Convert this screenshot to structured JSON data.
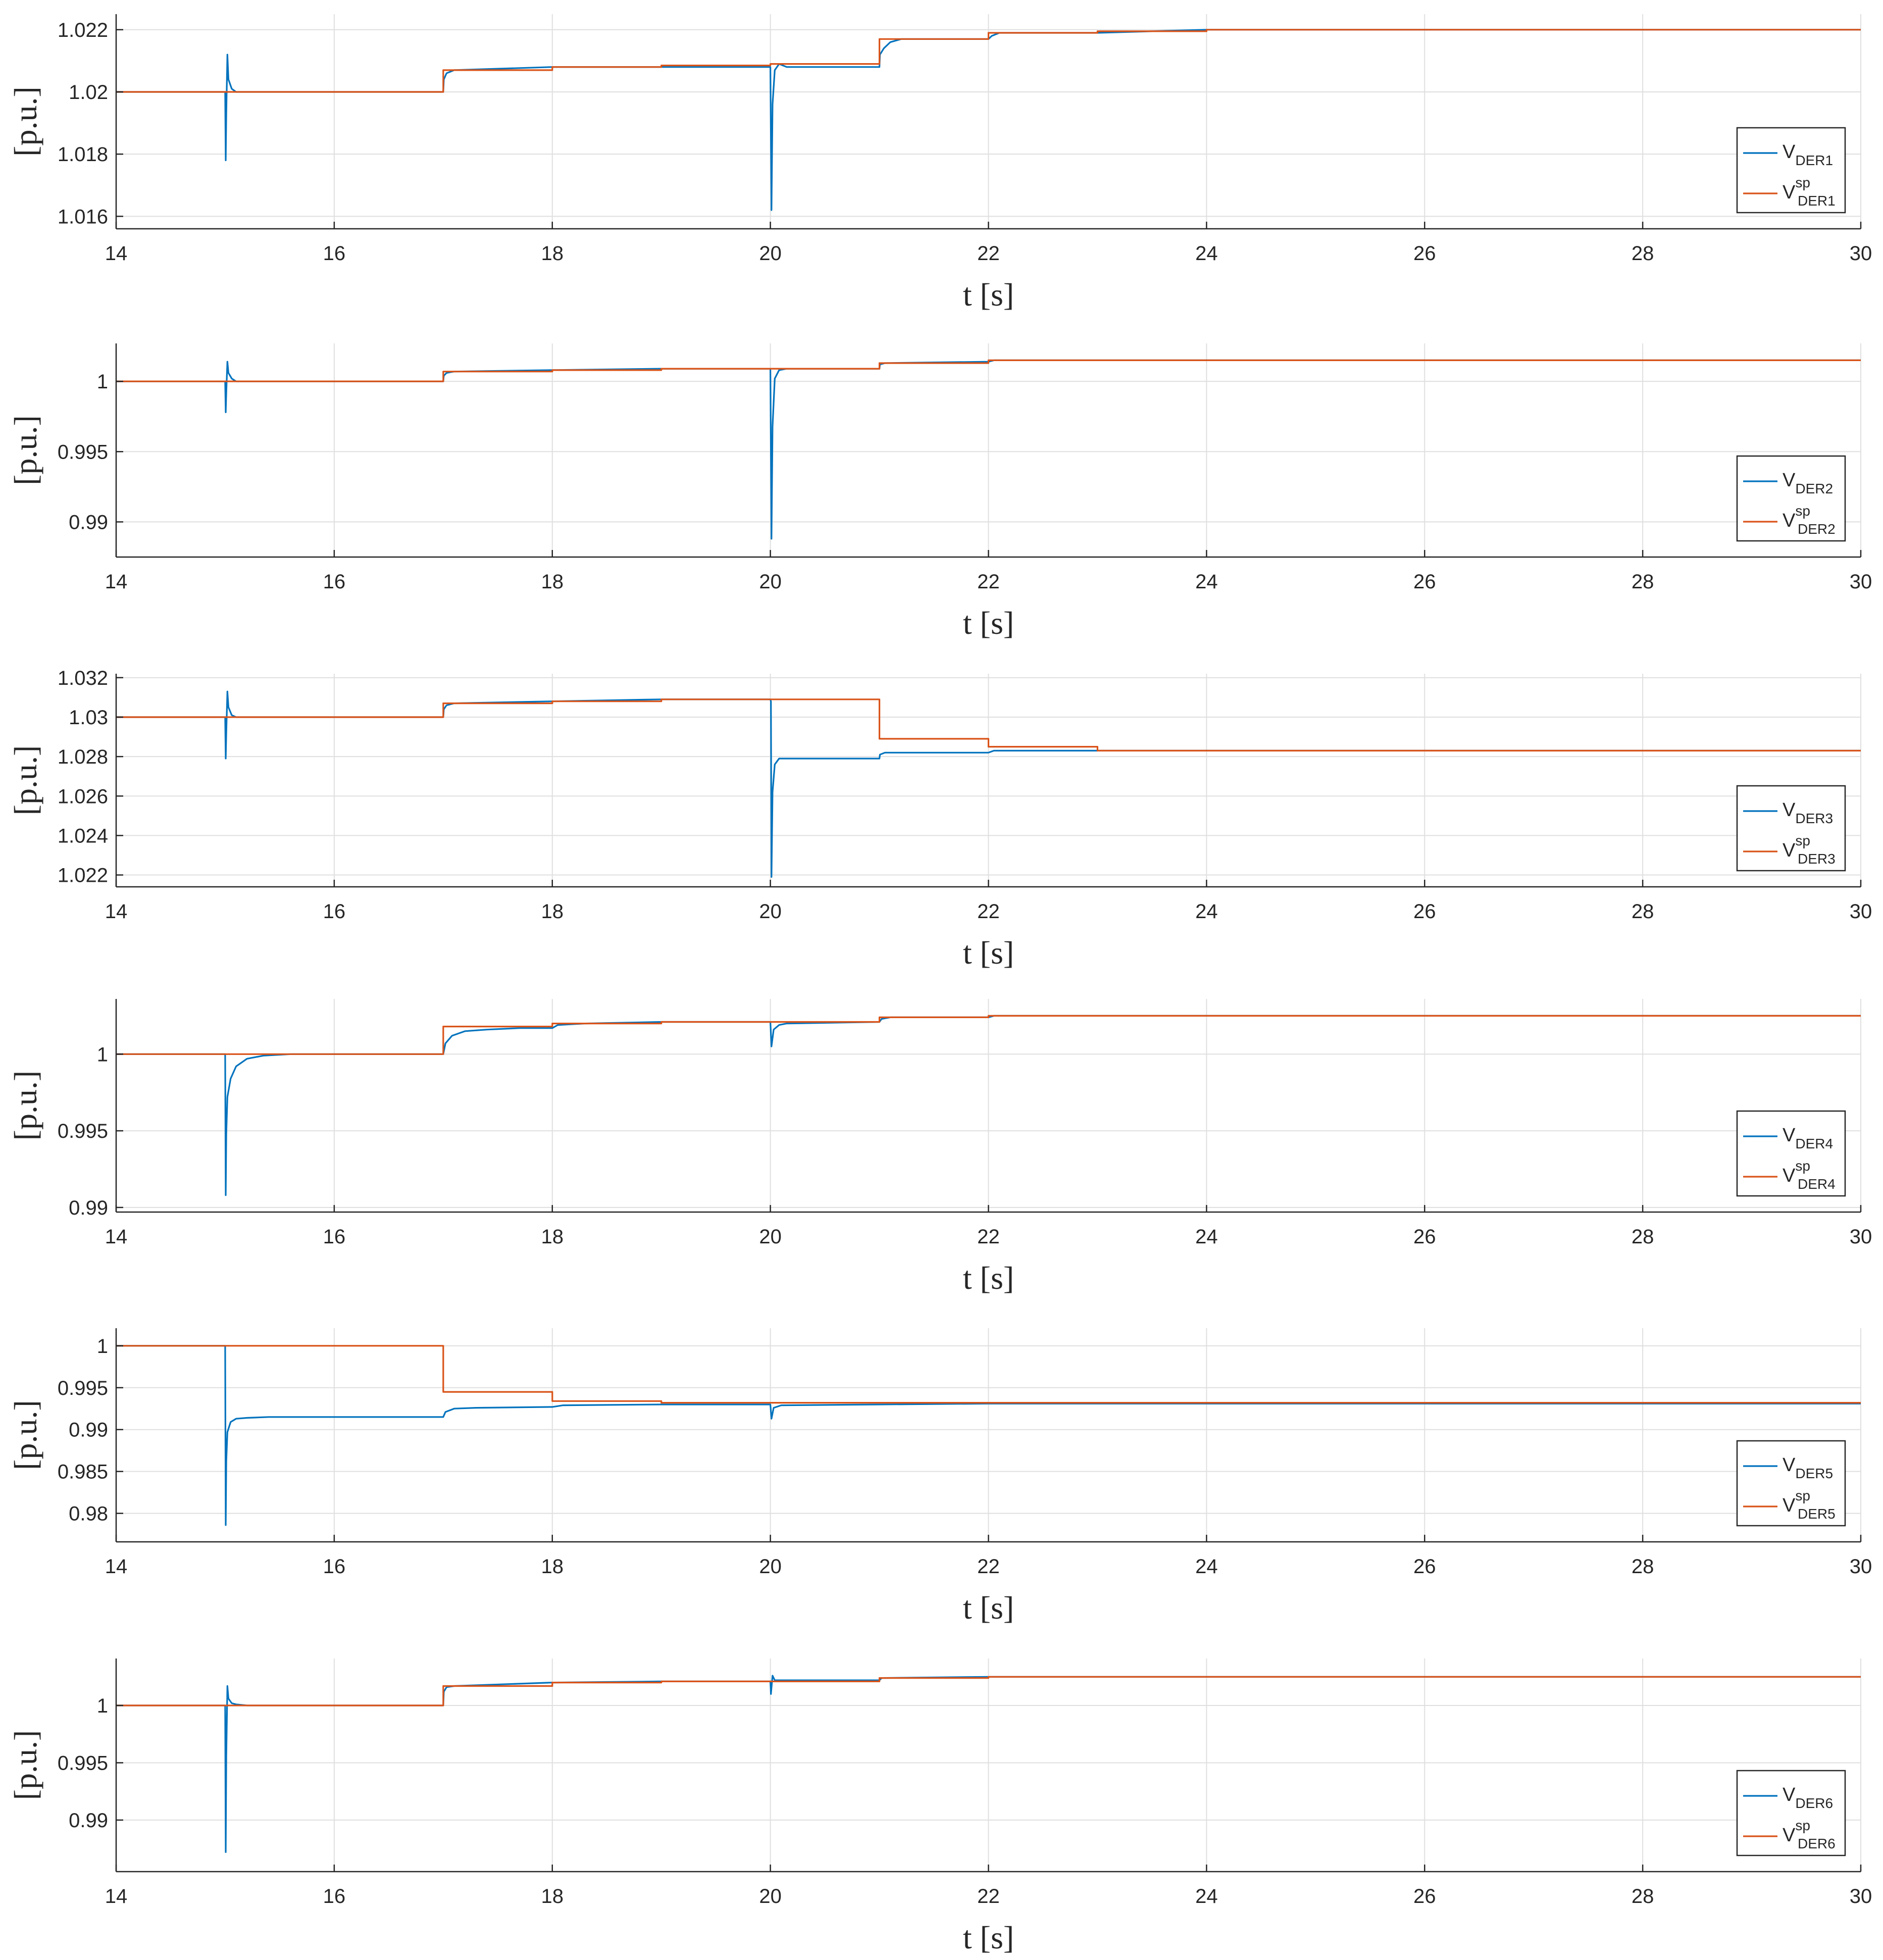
{
  "figure": {
    "background": "#ffffff",
    "grid_color": "#dfdfdf",
    "axis_color": "#262626",
    "series_colors": {
      "measured": "#0072BD",
      "setpoint": "#D95319"
    }
  },
  "chart_data": [
    {
      "type": "line",
      "xlabel": "t [s]",
      "ylabel": "[p.u.]",
      "xlim": [
        14,
        30
      ],
      "ylim": [
        1.0156,
        1.0225
      ],
      "xticks": [
        14,
        16,
        18,
        20,
        22,
        24,
        26,
        28,
        30
      ],
      "xtick_labels": [
        "14",
        "16",
        "18",
        "20",
        "22",
        "24",
        "26",
        "28",
        "30"
      ],
      "yticks": [
        1.016,
        1.018,
        1.02,
        1.022
      ],
      "ytick_labels": [
        "1.016",
        "1.018",
        "1.02",
        "1.022"
      ],
      "grid": true,
      "legend_position": "bottom-right",
      "series": [
        {
          "name_base": "V",
          "name_sub": "DER1",
          "name_sup": "",
          "color": "#0072BD",
          "x": [
            14,
            15.0,
            15.005,
            15.01,
            15.02,
            15.03,
            15.06,
            15.1,
            15.2,
            15.3,
            17.0,
            17.005,
            17.03,
            17.1,
            18.0,
            19.0,
            20.0,
            20.01,
            20.02,
            20.04,
            20.08,
            20.15,
            21.0,
            21.005,
            21.04,
            21.1,
            21.2,
            22.0,
            22.03,
            22.1,
            23.0,
            24.0,
            30
          ],
          "y": [
            1.02,
            1.02,
            1.0178,
            1.0193,
            1.0212,
            1.0204,
            1.0201,
            1.02,
            1.02,
            1.02,
            1.02,
            1.0204,
            1.0206,
            1.0207,
            1.0208,
            1.0208,
            1.0208,
            1.0162,
            1.0196,
            1.0207,
            1.0209,
            1.0208,
            1.0208,
            1.0212,
            1.0214,
            1.0216,
            1.0217,
            1.0217,
            1.0218,
            1.0219,
            1.0219,
            1.022,
            1.022
          ]
        },
        {
          "name_base": "V",
          "name_sub": "DER1",
          "name_sup": "sp",
          "color": "#D95319",
          "x": [
            14,
            17,
            17,
            18,
            18,
            19,
            19,
            20,
            20,
            21,
            21,
            22,
            22,
            23,
            23,
            24,
            24,
            30
          ],
          "y": [
            1.02,
            1.02,
            1.0207,
            1.0207,
            1.0208,
            1.0208,
            1.02085,
            1.02085,
            1.0209,
            1.0209,
            1.0217,
            1.0217,
            1.0219,
            1.0219,
            1.02195,
            1.02195,
            1.022,
            1.022
          ]
        }
      ]
    },
    {
      "type": "line",
      "xlabel": "t [s]",
      "ylabel": "[p.u.]",
      "xlim": [
        14,
        30
      ],
      "ylim": [
        0.9875,
        1.0027
      ],
      "xticks": [
        14,
        16,
        18,
        20,
        22,
        24,
        26,
        28,
        30
      ],
      "xtick_labels": [
        "14",
        "16",
        "18",
        "20",
        "22",
        "24",
        "26",
        "28",
        "30"
      ],
      "yticks": [
        0.99,
        0.995,
        1.0
      ],
      "ytick_labels": [
        "0.99",
        "0.995",
        "1"
      ],
      "grid": true,
      "legend_position": "bottom-right",
      "series": [
        {
          "name_base": "V",
          "name_sub": "DER2",
          "name_sup": "",
          "color": "#0072BD",
          "x": [
            14,
            15.0,
            15.005,
            15.01,
            15.02,
            15.03,
            15.06,
            15.1,
            15.2,
            17.0,
            17.005,
            17.03,
            17.1,
            18.0,
            19.0,
            20.0,
            20.01,
            20.02,
            20.04,
            20.08,
            20.15,
            21.0,
            21.005,
            21.05,
            22.0,
            22.05,
            23.0,
            30
          ],
          "y": [
            1.0,
            1.0,
            0.9978,
            0.9992,
            1.0014,
            1.0006,
            1.0002,
            1.0,
            1.0,
            1.0,
            1.0004,
            1.0006,
            1.0007,
            1.0008,
            1.0009,
            1.0009,
            0.9888,
            0.9968,
            1.0002,
            1.0008,
            1.0009,
            1.0009,
            1.0012,
            1.0013,
            1.0014,
            1.0015,
            1.0015,
            1.0015
          ]
        },
        {
          "name_base": "V",
          "name_sub": "DER2",
          "name_sup": "sp",
          "color": "#D95319",
          "x": [
            14,
            17,
            17,
            18,
            18,
            19,
            19,
            21,
            21,
            22,
            22,
            30
          ],
          "y": [
            1.0,
            1.0,
            1.0007,
            1.0007,
            1.0008,
            1.0008,
            1.0009,
            1.0009,
            1.0013,
            1.0013,
            1.0015,
            1.0015
          ]
        }
      ]
    },
    {
      "type": "line",
      "xlabel": "t [s]",
      "ylabel": "[p.u.]",
      "xlim": [
        14,
        30
      ],
      "ylim": [
        1.0214,
        1.0322
      ],
      "xticks": [
        14,
        16,
        18,
        20,
        22,
        24,
        26,
        28,
        30
      ],
      "xtick_labels": [
        "14",
        "16",
        "18",
        "20",
        "22",
        "24",
        "26",
        "28",
        "30"
      ],
      "yticks": [
        1.022,
        1.024,
        1.026,
        1.028,
        1.03,
        1.032
      ],
      "ytick_labels": [
        "1.022",
        "1.024",
        "1.026",
        "1.028",
        "1.03",
        "1.032"
      ],
      "grid": true,
      "legend_position": "bottom-right",
      "series": [
        {
          "name_base": "V",
          "name_sub": "DER3",
          "name_sup": "",
          "color": "#0072BD",
          "x": [
            14,
            15.0,
            15.005,
            15.01,
            15.02,
            15.03,
            15.06,
            15.1,
            15.2,
            17.0,
            17.005,
            17.03,
            17.1,
            18.0,
            19.0,
            20.0,
            20.005,
            20.01,
            20.02,
            20.04,
            20.08,
            20.15,
            21.0,
            21.005,
            21.05,
            22.0,
            22.05,
            23.0,
            30
          ],
          "y": [
            1.03,
            1.03,
            1.0279,
            1.0292,
            1.0313,
            1.0305,
            1.0301,
            1.03,
            1.03,
            1.03,
            1.0304,
            1.0306,
            1.0307,
            1.0308,
            1.0309,
            1.0309,
            1.0308,
            1.0219,
            1.0262,
            1.0276,
            1.0279,
            1.0279,
            1.0279,
            1.0281,
            1.0282,
            1.0282,
            1.0283,
            1.0283,
            1.0283
          ]
        },
        {
          "name_base": "V",
          "name_sub": "DER3",
          "name_sup": "sp",
          "color": "#D95319",
          "x": [
            14,
            17,
            17,
            18,
            18,
            19,
            19,
            21,
            21,
            22,
            22,
            23,
            23,
            30
          ],
          "y": [
            1.03,
            1.03,
            1.0307,
            1.0307,
            1.0308,
            1.0308,
            1.0309,
            1.0309,
            1.0289,
            1.0289,
            1.0285,
            1.0285,
            1.0283,
            1.0283
          ]
        }
      ]
    },
    {
      "type": "line",
      "xlabel": "t [s]",
      "ylabel": "[p.u.]",
      "xlim": [
        14,
        30
      ],
      "ylim": [
        0.9897,
        1.0036
      ],
      "xticks": [
        14,
        16,
        18,
        20,
        22,
        24,
        26,
        28,
        30
      ],
      "xtick_labels": [
        "14",
        "16",
        "18",
        "20",
        "22",
        "24",
        "26",
        "28",
        "30"
      ],
      "yticks": [
        0.99,
        0.995,
        1.0
      ],
      "ytick_labels": [
        "0.99",
        "0.995",
        "1"
      ],
      "grid": true,
      "legend_position": "bottom-right",
      "series": [
        {
          "name_base": "V",
          "name_sub": "DER4",
          "name_sup": "",
          "color": "#0072BD",
          "x": [
            14,
            15.0,
            15.005,
            15.01,
            15.02,
            15.05,
            15.1,
            15.2,
            15.35,
            15.6,
            17.0,
            17.02,
            17.08,
            17.2,
            17.4,
            17.7,
            18.0,
            18.05,
            18.3,
            19.0,
            20.0,
            20.01,
            20.03,
            20.08,
            20.15,
            21.0,
            21.02,
            21.1,
            22.0,
            22.05,
            23.0,
            30
          ],
          "y": [
            1.0,
            1.0,
            0.9908,
            0.9948,
            0.9972,
            0.9984,
            0.9992,
            0.9997,
            0.9999,
            1.0,
            1.0,
            1.0007,
            1.0012,
            1.0015,
            1.0016,
            1.0017,
            1.0017,
            1.0019,
            1.002,
            1.0021,
            1.0021,
            1.0005,
            1.0016,
            1.0019,
            1.002,
            1.0021,
            1.0023,
            1.0024,
            1.0024,
            1.0025,
            1.0025,
            1.0025
          ]
        },
        {
          "name_base": "V",
          "name_sub": "DER4",
          "name_sup": "sp",
          "color": "#D95319",
          "x": [
            14,
            17,
            17,
            18,
            18,
            19,
            19,
            21,
            21,
            22,
            22,
            30
          ],
          "y": [
            1.0,
            1.0,
            1.0018,
            1.0018,
            1.002,
            1.002,
            1.0021,
            1.0021,
            1.0024,
            1.0024,
            1.0025,
            1.0025
          ]
        }
      ]
    },
    {
      "type": "line",
      "xlabel": "t [s]",
      "ylabel": "[p.u.]",
      "xlim": [
        14,
        30
      ],
      "ylim": [
        0.9766,
        1.0021
      ],
      "xticks": [
        14,
        16,
        18,
        20,
        22,
        24,
        26,
        28,
        30
      ],
      "xtick_labels": [
        "14",
        "16",
        "18",
        "20",
        "22",
        "24",
        "26",
        "28",
        "30"
      ],
      "yticks": [
        0.98,
        0.985,
        0.99,
        0.995,
        1.0
      ],
      "ytick_labels": [
        "0.98",
        "0.985",
        "0.99",
        "0.995",
        "1"
      ],
      "grid": true,
      "legend_position": "bottom-right",
      "series": [
        {
          "name_base": "V",
          "name_sub": "DER5",
          "name_sup": "",
          "color": "#0072BD",
          "x": [
            14,
            15.0,
            15.005,
            15.01,
            15.02,
            15.05,
            15.1,
            15.2,
            15.4,
            17.0,
            17.02,
            17.1,
            17.3,
            18.0,
            18.1,
            19.0,
            20.0,
            20.01,
            20.03,
            20.1,
            21.0,
            22.0,
            30
          ],
          "y": [
            1.0,
            1.0,
            0.9786,
            0.9862,
            0.9897,
            0.9909,
            0.9913,
            0.9914,
            0.9915,
            0.9915,
            0.9921,
            0.9925,
            0.9926,
            0.9927,
            0.9929,
            0.993,
            0.993,
            0.9913,
            0.9926,
            0.9929,
            0.993,
            0.9931,
            0.9931
          ]
        },
        {
          "name_base": "V",
          "name_sub": "DER5",
          "name_sup": "sp",
          "color": "#D95319",
          "x": [
            14,
            17,
            17,
            18,
            18,
            19,
            19,
            30
          ],
          "y": [
            1.0,
            1.0,
            0.9945,
            0.9945,
            0.9934,
            0.9934,
            0.9932,
            0.9932
          ]
        }
      ]
    },
    {
      "type": "line",
      "xlabel": "t [s]",
      "ylabel": "[p.u.]",
      "xlim": [
        14,
        30
      ],
      "ylim": [
        0.9855,
        1.0041
      ],
      "xticks": [
        14,
        16,
        18,
        20,
        22,
        24,
        26,
        28,
        30
      ],
      "xtick_labels": [
        "14",
        "16",
        "18",
        "20",
        "22",
        "24",
        "26",
        "28",
        "30"
      ],
      "yticks": [
        0.99,
        0.995,
        1.0
      ],
      "ytick_labels": [
        "0.99",
        "0.995",
        "1"
      ],
      "grid": true,
      "legend_position": "bottom-right",
      "series": [
        {
          "name_base": "V",
          "name_sub": "DER6",
          "name_sup": "",
          "color": "#0072BD",
          "x": [
            14,
            15.0,
            15.005,
            15.01,
            15.02,
            15.03,
            15.06,
            15.1,
            15.2,
            17.0,
            17.005,
            17.03,
            17.1,
            18.0,
            19.0,
            20.0,
            20.005,
            20.02,
            20.04,
            20.1,
            21.0,
            21.02,
            22.0,
            30
          ],
          "y": [
            1.0,
            1.0,
            0.9872,
            0.9955,
            1.0017,
            1.0006,
            1.0002,
            1.0001,
            1.0,
            1.0,
            1.0012,
            1.0016,
            1.0017,
            1.002,
            1.0021,
            1.0021,
            1.001,
            1.0026,
            1.0022,
            1.0022,
            1.0022,
            1.0024,
            1.0025,
            1.0025
          ]
        },
        {
          "name_base": "V",
          "name_sub": "DER6",
          "name_sup": "sp",
          "color": "#D95319",
          "x": [
            14,
            17,
            17,
            18,
            18,
            19,
            19,
            21,
            21,
            22,
            22,
            30
          ],
          "y": [
            1.0,
            1.0,
            1.0017,
            1.0017,
            1.002,
            1.002,
            1.0021,
            1.0021,
            1.0024,
            1.0024,
            1.0025,
            1.0025
          ]
        }
      ]
    }
  ]
}
